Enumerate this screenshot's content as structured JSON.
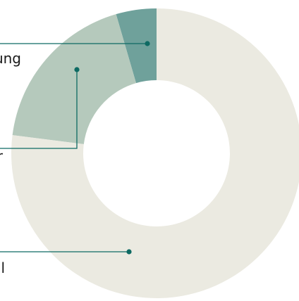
{
  "chart_data": {
    "type": "pie",
    "variant": "donut",
    "slices": [
      {
        "label": "ung",
        "value": 4.5,
        "color": "#6fa19b"
      },
      {
        "label": "r",
        "value": 18.5,
        "color": "#b5c9bc"
      },
      {
        "label": "l",
        "value": 77.0,
        "color": "#ebeae1"
      }
    ],
    "leader_color": "#0e6a63",
    "start_angle_deg": 0,
    "direction": "counterclockwise",
    "legend": "leader-lines-left"
  }
}
